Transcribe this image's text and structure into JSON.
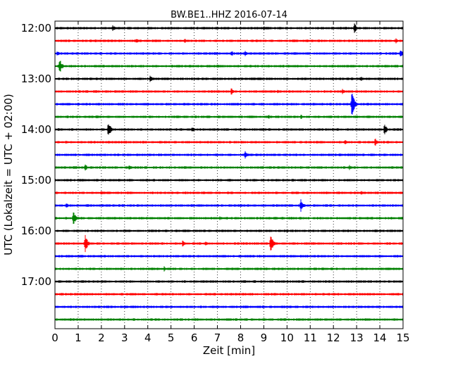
{
  "chart_data": {
    "type": "line",
    "title": "BW.BE1..HHZ 2016-07-14",
    "xlabel": "Zeit  [min]",
    "ylabel": "UTC (Lokalzeit = UTC + 02:00)",
    "xlim": [
      0,
      15
    ],
    "x_ticks": [
      "0",
      "1",
      "2",
      "3",
      "4",
      "5",
      "6",
      "7",
      "8",
      "9",
      "10",
      "11",
      "12",
      "13",
      "14",
      "15"
    ],
    "y_ticks": [
      "12:00",
      "13:00",
      "14:00",
      "15:00",
      "16:00",
      "17:00"
    ],
    "trace_colors": [
      "#000000",
      "#ff0000",
      "#0000ff",
      "#008000"
    ],
    "trace_interval_minutes": 15,
    "traces": [
      {
        "start": "12:00",
        "color": "#000000",
        "events": [
          [
            2.5,
            5
          ],
          [
            9,
            4
          ],
          [
            12.9,
            8
          ]
        ]
      },
      {
        "start": "12:15",
        "color": "#ff0000",
        "events": [
          [
            3.5,
            4
          ],
          [
            5.6,
            4
          ],
          [
            14.7,
            4
          ]
        ]
      },
      {
        "start": "12:30",
        "color": "#0000ff",
        "events": [
          [
            0.1,
            4
          ],
          [
            7.6,
            5
          ],
          [
            8.2,
            4
          ],
          [
            14.9,
            6
          ]
        ]
      },
      {
        "start": "12:45",
        "color": "#008000",
        "events": [
          [
            0.2,
            12
          ],
          [
            7,
            3
          ]
        ]
      },
      {
        "start": "13:00",
        "color": "#000000",
        "events": [
          [
            4.1,
            5
          ],
          [
            8.6,
            3
          ],
          [
            13.2,
            4
          ]
        ]
      },
      {
        "start": "13:15",
        "color": "#ff0000",
        "events": [
          [
            7.6,
            6
          ],
          [
            9.6,
            4
          ],
          [
            12.4,
            5
          ]
        ]
      },
      {
        "start": "13:30",
        "color": "#0000ff",
        "events": [
          [
            12.8,
            22
          ]
        ]
      },
      {
        "start": "13:45",
        "color": "#008000",
        "events": [
          [
            1.8,
            4
          ],
          [
            9.2,
            4
          ],
          [
            10.6,
            4
          ]
        ]
      },
      {
        "start": "14:00",
        "color": "#000000",
        "events": [
          [
            2.3,
            14
          ],
          [
            5.9,
            5
          ],
          [
            14.2,
            9
          ]
        ]
      },
      {
        "start": "14:15",
        "color": "#ff0000",
        "events": [
          [
            12.5,
            4
          ],
          [
            13.8,
            6
          ]
        ]
      },
      {
        "start": "14:30",
        "color": "#0000ff",
        "events": [
          [
            8.2,
            6
          ]
        ]
      },
      {
        "start": "14:45",
        "color": "#008000",
        "events": [
          [
            1.3,
            6
          ],
          [
            3.2,
            5
          ],
          [
            12.7,
            4
          ]
        ]
      },
      {
        "start": "15:00",
        "color": "#000000",
        "events": [
          [
            6.8,
            2
          ]
        ]
      },
      {
        "start": "15:15",
        "color": "#ff0000",
        "events": [
          [
            2,
            3
          ],
          [
            13.2,
            3
          ]
        ]
      },
      {
        "start": "15:30",
        "color": "#0000ff",
        "events": [
          [
            0.5,
            4
          ],
          [
            10.6,
            10
          ]
        ]
      },
      {
        "start": "15:45",
        "color": "#008000",
        "events": [
          [
            0.8,
            12
          ],
          [
            7.1,
            3
          ]
        ]
      },
      {
        "start": "16:00",
        "color": "#000000",
        "events": [
          [
            7.2,
            2
          ]
        ]
      },
      {
        "start": "16:15",
        "color": "#ff0000",
        "events": [
          [
            1.3,
            14
          ],
          [
            5.5,
            5
          ],
          [
            6.5,
            4
          ],
          [
            9.3,
            14
          ]
        ]
      },
      {
        "start": "16:30",
        "color": "#0000ff",
        "events": [
          [
            9,
            2
          ]
        ]
      },
      {
        "start": "16:45",
        "color": "#008000",
        "events": [
          [
            4.7,
            4
          ]
        ]
      },
      {
        "start": "17:00",
        "color": "#000000",
        "events": []
      },
      {
        "start": "17:15",
        "color": "#ff0000",
        "events": []
      },
      {
        "start": "17:30",
        "color": "#0000ff",
        "events": []
      },
      {
        "start": "17:45",
        "color": "#008000",
        "events": [
          [
            14.2,
            3
          ]
        ]
      }
    ],
    "grid": "vertical-dotted"
  }
}
